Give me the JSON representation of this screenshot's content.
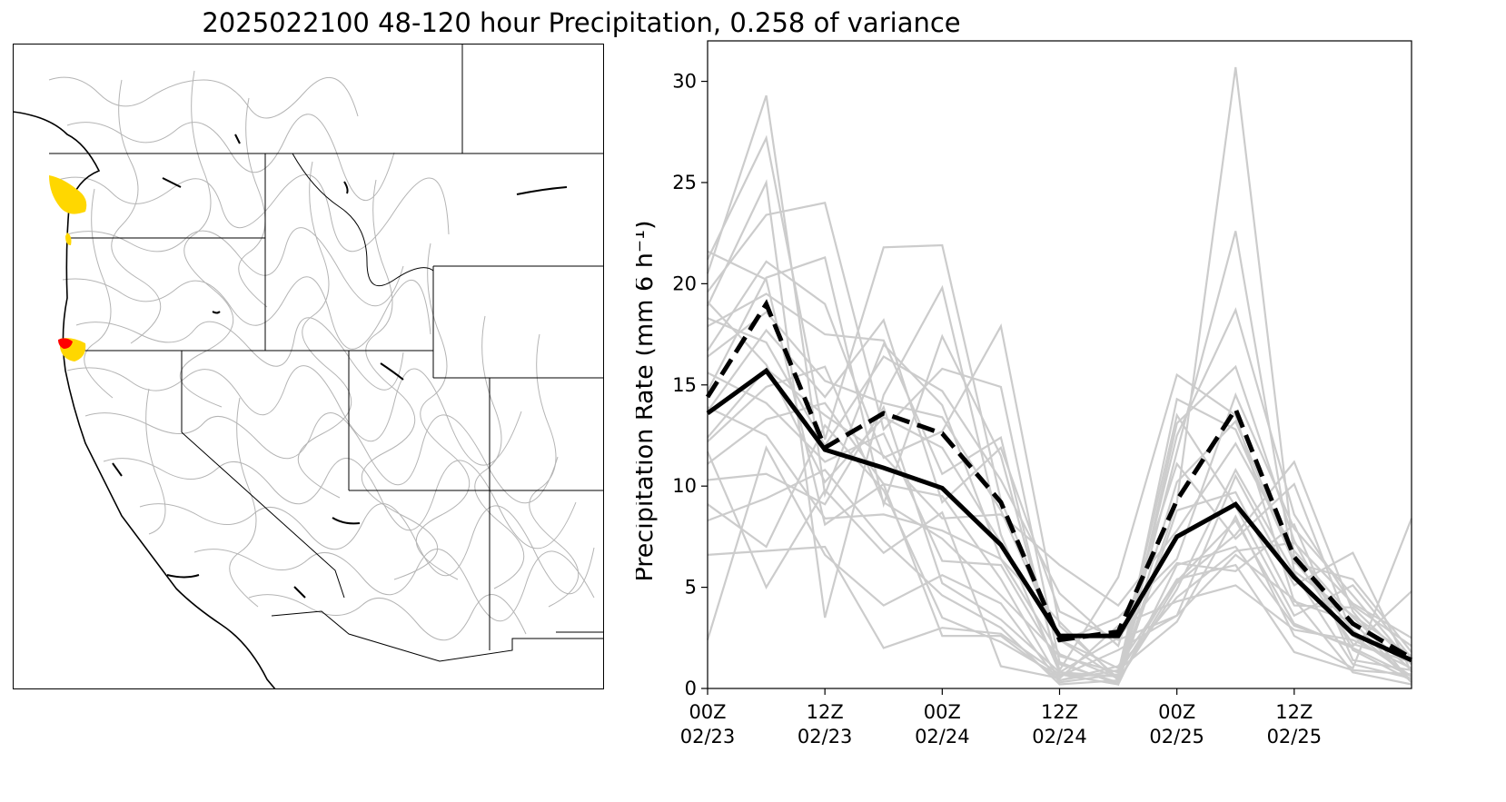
{
  "figure": {
    "title": "2025022100 48-120 hour Precipitation, 0.258 of variance"
  },
  "map": {
    "region": "western United States river basins",
    "colors": {
      "basin_lines": "#b4b4b4",
      "borders": "#000000",
      "highlight_yellow": "#ffd700",
      "highlight_red": "#ff0000"
    }
  },
  "chart_data": {
    "type": "line",
    "ylabel": "Precipitation Rate (mm 6 h⁻¹)",
    "ylim": [
      0,
      32
    ],
    "yticks": [
      0,
      5,
      10,
      15,
      20,
      25,
      30
    ],
    "x": [
      "02/23 00Z",
      "02/23 06Z",
      "02/23 12Z",
      "02/23 18Z",
      "02/24 00Z",
      "02/24 06Z",
      "02/24 12Z",
      "02/24 18Z",
      "02/25 00Z",
      "02/25 06Z",
      "02/25 12Z",
      "02/25 18Z",
      "02/26 00Z"
    ],
    "xticks": [
      {
        "top": "00Z",
        "bottom": "02/23"
      },
      {
        "top": "12Z",
        "bottom": "02/23"
      },
      {
        "top": "00Z",
        "bottom": "02/24"
      },
      {
        "top": "12Z",
        "bottom": "02/24"
      },
      {
        "top": "00Z",
        "bottom": "02/25"
      },
      {
        "top": "12Z",
        "bottom": "02/25"
      }
    ],
    "series": [
      {
        "style": "solid",
        "color": "#000000",
        "values": [
          13.6,
          15.7,
          11.8,
          10.9,
          9.9,
          7.1,
          2.6,
          2.6,
          7.5,
          9.1,
          5.5,
          2.7,
          1.4
        ]
      },
      {
        "style": "dashed",
        "color": "#000000",
        "values": [
          14.4,
          19.0,
          11.9,
          13.6,
          12.6,
          9.2,
          2.4,
          2.8,
          9.3,
          13.8,
          6.5,
          3.2,
          1.5
        ]
      }
    ],
    "members_color": "#cccccc",
    "members": [
      [
        20.5,
        29.3,
        9.6,
        17.0,
        14.0,
        6.4,
        1.7,
        0.5,
        9.2,
        30.7,
        6.5,
        2.2,
        1.3
      ],
      [
        21.2,
        27.2,
        12.3,
        21.8,
        21.9,
        9.3,
        2.4,
        0.5,
        11.7,
        22.6,
        5.8,
        3.6,
        1.6
      ],
      [
        18.9,
        25.0,
        3.5,
        14.5,
        19.8,
        7.6,
        0.8,
        0.6,
        12.5,
        18.7,
        8.6,
        4.1,
        2.1
      ],
      [
        19.6,
        23.4,
        24.0,
        12.8,
        15.8,
        14.9,
        1.3,
        0.2,
        13.1,
        15.9,
        7.3,
        1.9,
        0.4
      ],
      [
        16.7,
        21.1,
        19.0,
        11.4,
        12.7,
        17.9,
        3.1,
        0.5,
        14.3,
        12.8,
        6.2,
        5.4,
        1.8
      ],
      [
        14.7,
        20.3,
        21.3,
        9.1,
        17.4,
        11.5,
        0.9,
        5.5,
        15.5,
        13.5,
        4.3,
        3.3,
        0.3
      ],
      [
        17.9,
        19.5,
        17.5,
        17.2,
        10.6,
        12.4,
        0.7,
        0.6,
        10.2,
        13.2,
        6.3,
        2.9,
        0.4
      ],
      [
        16.4,
        18.6,
        15.2,
        14.1,
        13.4,
        8.8,
        2.3,
        3.5,
        6.4,
        14.5,
        7.9,
        4.6,
        1.2
      ],
      [
        13.7,
        17.7,
        14.4,
        18.2,
        9.2,
        11.9,
        3.8,
        2.4,
        3.6,
        10.5,
        5.1,
        6.7,
        0.8
      ],
      [
        12.4,
        15.8,
        13.5,
        11.5,
        8.4,
        8.6,
        6.1,
        4.1,
        7.8,
        12.1,
        6.8,
        3.5,
        0.9
      ],
      [
        18.3,
        17.1,
        12.0,
        16.4,
        14.7,
        10.3,
        4.7,
        2.1,
        11.1,
        7.4,
        10.1,
        2.6,
        0.6
      ],
      [
        19.1,
        16.0,
        10.2,
        13.4,
        11.9,
        7.2,
        2.4,
        1.0,
        4.5,
        6.8,
        7.2,
        4.2,
        2.5
      ],
      [
        15.6,
        14.1,
        11.2,
        12.6,
        6.3,
        6.1,
        1.2,
        0.3,
        8.8,
        9.7,
        4.1,
        4.0,
        1.2
      ],
      [
        11.1,
        13.3,
        14.1,
        10.1,
        9.5,
        5.4,
        0.4,
        1.1,
        5.3,
        8.3,
        3.2,
        2.0,
        0.6
      ],
      [
        12.2,
        14.9,
        15.9,
        9.2,
        7.4,
        4.6,
        1.6,
        0.8,
        13.5,
        9.0,
        3.6,
        5.1,
        1.5
      ],
      [
        10.3,
        10.6,
        9.1,
        13.9,
        5.2,
        3.4,
        0.8,
        2.5,
        6.2,
        5.8,
        8.1,
        1.4,
        0.9
      ],
      [
        13.9,
        12.5,
        8.4,
        8.6,
        7.8,
        6.4,
        3.3,
        0.4,
        5.2,
        7.6,
        11.2,
        3.8,
        0.3
      ],
      [
        9.1,
        7.0,
        13.0,
        9.8,
        3.5,
        2.3,
        0.6,
        1.9,
        3.6,
        6.6,
        4.4,
        0.8,
        0.2
      ],
      [
        8.3,
        9.4,
        10.8,
        7.3,
        4.6,
        3.0,
        0.2,
        0.4,
        4.9,
        10.8,
        5.7,
        1.2,
        0.5
      ],
      [
        11.7,
        5.0,
        9.8,
        6.7,
        8.7,
        1.1,
        0.5,
        3.1,
        4.3,
        5.1,
        2.9,
        2.4,
        1.0
      ],
      [
        2.4,
        11.9,
        6.6,
        4.1,
        5.6,
        4.2,
        0.3,
        0.7,
        5.4,
        6.1,
        1.8,
        0.9,
        0.7
      ],
      [
        6.6,
        6.8,
        7.0,
        2.0,
        3.0,
        2.7,
        0.7,
        0.2,
        6.1,
        7.0,
        3.1,
        2.1,
        4.8
      ],
      [
        21.6,
        20.2,
        8.1,
        10.1,
        2.6,
        2.6,
        0.4,
        0.9,
        3.3,
        8.5,
        2.6,
        1.0,
        8.4
      ]
    ]
  }
}
